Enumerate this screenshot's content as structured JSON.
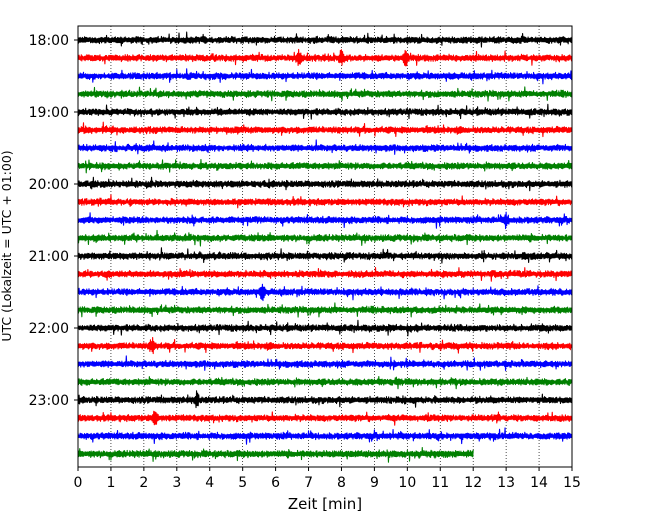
{
  "chart_data": {
    "type": "line",
    "title": "",
    "xlabel": "Zeit  [min]",
    "ylabel": "UTC (Lokalzeit = UTC + 01:00)",
    "xlim": [
      0,
      15
    ],
    "x_ticks": [
      0,
      1,
      2,
      3,
      4,
      5,
      6,
      7,
      8,
      9,
      10,
      11,
      12,
      13,
      14,
      15
    ],
    "x_tick_labels": [
      "0",
      "1",
      "2",
      "3",
      "4",
      "5",
      "6",
      "7",
      "8",
      "9",
      "10",
      "11",
      "12",
      "13",
      "14",
      "15"
    ],
    "y_tick_labels": [
      "18:00",
      "19:00",
      "20:00",
      "21:00",
      "22:00",
      "23:00"
    ],
    "grid": "vertical dotted",
    "legend": "none",
    "trace_color_cycle": [
      "#000000",
      "#ff0000",
      "#0000ff",
      "#008000"
    ],
    "series": [
      {
        "start": "18:00",
        "x_end": 15
      },
      {
        "start": "18:15",
        "x_end": 15
      },
      {
        "start": "18:30",
        "x_end": 15
      },
      {
        "start": "18:45",
        "x_end": 15
      },
      {
        "start": "19:00",
        "x_end": 15
      },
      {
        "start": "19:15",
        "x_end": 15
      },
      {
        "start": "19:30",
        "x_end": 15
      },
      {
        "start": "19:45",
        "x_end": 15
      },
      {
        "start": "20:00",
        "x_end": 15
      },
      {
        "start": "20:15",
        "x_end": 15
      },
      {
        "start": "20:30",
        "x_end": 15
      },
      {
        "start": "20:45",
        "x_end": 15
      },
      {
        "start": "21:00",
        "x_end": 15
      },
      {
        "start": "21:15",
        "x_end": 15
      },
      {
        "start": "21:30",
        "x_end": 15
      },
      {
        "start": "21:45",
        "x_end": 15
      },
      {
        "start": "22:00",
        "x_end": 15
      },
      {
        "start": "22:15",
        "x_end": 15
      },
      {
        "start": "22:30",
        "x_end": 15
      },
      {
        "start": "22:45",
        "x_end": 15
      },
      {
        "start": "23:00",
        "x_end": 15
      },
      {
        "start": "23:15",
        "x_end": 15
      },
      {
        "start": "23:30",
        "x_end": 15
      },
      {
        "start": "23:45",
        "x_end": 12
      }
    ],
    "notable_events": [
      {
        "trace": "23:15",
        "x_min": 2.35
      },
      {
        "trace": "22:15",
        "x_min": 2.25
      },
      {
        "trace": "23:00",
        "x_min": 3.6
      },
      {
        "trace": "18:15",
        "x_min": 8.0
      },
      {
        "trace": "18:15",
        "x_min": 6.7
      },
      {
        "trace": "18:15",
        "x_min": 9.95
      },
      {
        "trace": "20:30",
        "x_min": 13.0
      },
      {
        "trace": "21:30",
        "x_min": 5.6
      }
    ]
  }
}
